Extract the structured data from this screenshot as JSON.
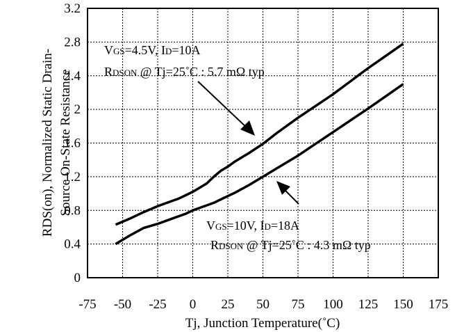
{
  "chart_data": {
    "type": "line",
    "xlabel": "Tj, Junction Temperature(˚C)",
    "ylabel_line1": "RDS(on), Normalized Static Drain-",
    "ylabel_line2": "Source On-State Resistance",
    "xlim": [
      -75,
      175
    ],
    "ylim": [
      0,
      3.2
    ],
    "x_ticks": [
      -75,
      -50,
      -25,
      0,
      25,
      50,
      75,
      100,
      125,
      150,
      175
    ],
    "y_ticks": [
      0,
      0.4,
      0.8,
      1.2,
      1.6,
      2,
      2.4,
      2.8,
      3.2
    ],
    "y_tick_labels": [
      "0",
      "0.4",
      "0.8",
      "1.2",
      "1.6",
      "2",
      "2.4",
      "2.8",
      "3.2"
    ],
    "grid": true,
    "series": [
      {
        "name": "VGS=4.5V, ID=10A",
        "x": [
          -55,
          -45,
          -35,
          -25,
          -15,
          -10,
          -5,
          0,
          5,
          10,
          15,
          20,
          25,
          30,
          40,
          50,
          60,
          75,
          100,
          125,
          150
        ],
        "y": [
          0.63,
          0.7,
          0.78,
          0.85,
          0.91,
          0.94,
          0.98,
          1.02,
          1.07,
          1.12,
          1.2,
          1.27,
          1.32,
          1.38,
          1.48,
          1.59,
          1.72,
          1.9,
          2.18,
          2.49,
          2.78
        ]
      },
      {
        "name": "VGS=10V, ID=18A",
        "x": [
          -55,
          -45,
          -35,
          -25,
          -15,
          -5,
          0,
          5,
          10,
          15,
          20,
          25,
          30,
          40,
          50,
          60,
          75,
          100,
          125,
          150
        ],
        "y": [
          0.4,
          0.5,
          0.59,
          0.64,
          0.7,
          0.76,
          0.8,
          0.83,
          0.86,
          0.89,
          0.93,
          0.97,
          1.01,
          1.1,
          1.2,
          1.3,
          1.45,
          1.73,
          2.01,
          2.3
        ]
      }
    ],
    "annotations": [
      {
        "line1": {
          "a": "V",
          "a_sub": "GS",
          "b": "=4.5V, I",
          "b_sub": "D",
          "c": "=10A"
        },
        "line2": {
          "a": "R",
          "a_sub": "DSON",
          "b": " @ Tj=25˚C : 5.7 mΩ typ"
        }
      },
      {
        "line1": {
          "a": "V",
          "a_sub": "GS",
          "b": "=10V, I",
          "b_sub": "D",
          "c": "=18A"
        },
        "line2": {
          "a": "R",
          "a_sub": "DSON",
          "b": " @ Tj=25˚C : 4.3 mΩ typ"
        }
      }
    ]
  },
  "colors": {
    "line": "#000000",
    "grid": "#000000",
    "background": "#ffffff"
  }
}
